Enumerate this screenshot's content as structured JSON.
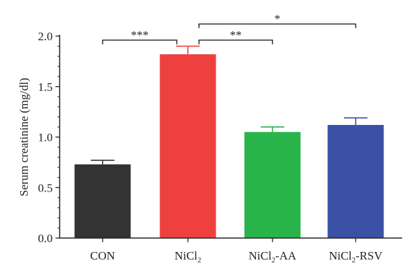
{
  "chart_data": {
    "type": "bar",
    "ylabel": "Serum creatinine (mg/dl)",
    "ylim": [
      0,
      2.0
    ],
    "yticks": [
      "0.0",
      "0.5",
      "1.0",
      "1.5",
      "2.0"
    ],
    "categories": [
      {
        "label": "CON",
        "base": "CON",
        "sub": "",
        "suffix": "",
        "value": 0.73,
        "error": 0.04,
        "color": "#333333"
      },
      {
        "label": "NiCl2",
        "base": "NiCl",
        "sub": "2",
        "suffix": "",
        "value": 1.82,
        "error": 0.08,
        "color": "#ef4040"
      },
      {
        "label": "NiCl2-AA",
        "base": "NiCl",
        "sub": "2",
        "suffix": "-AA",
        "value": 1.05,
        "error": 0.05,
        "color": "#28b44a"
      },
      {
        "label": "NiCl2-RSV",
        "base": "NiCl",
        "sub": "2",
        "suffix": "-RSV",
        "value": 1.12,
        "error": 0.07,
        "color": "#3a51a6"
      }
    ],
    "significance": [
      {
        "from": 0,
        "to": 1,
        "label": "***",
        "level": 1.96
      },
      {
        "from": 1,
        "to": 2,
        "label": "**",
        "level": 1.96
      },
      {
        "from": 1,
        "to": 3,
        "label": "*",
        "level": 2.12
      }
    ],
    "grid": false,
    "legend": "none"
  }
}
